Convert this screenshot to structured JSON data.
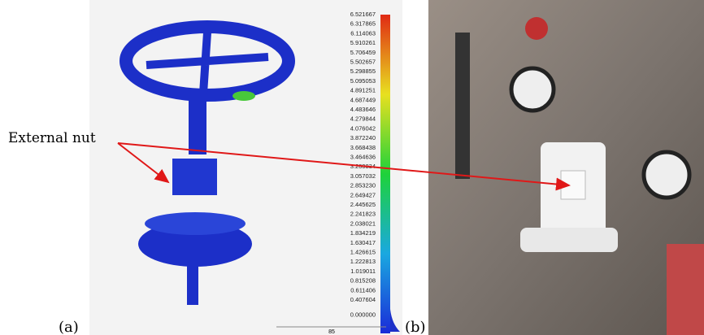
{
  "annotation": "External nut",
  "panel_a": {
    "label": "(a)",
    "colorbar_labels": [
      "6.521667",
      "6.317865",
      "6.114063",
      "5.910261",
      "5.706459",
      "5.502657",
      "5.298855",
      "5.095053",
      "4.891251",
      "4.687449",
      "4.483646",
      "4.279844",
      "4.076042",
      "3.872240",
      "3.668438",
      "3.464636",
      "3.260834",
      "3.057032",
      "2.853230",
      "2.649427",
      "2.445625",
      "2.241823",
      "2.038021",
      "1.834219",
      "1.630417",
      "1.426615",
      "1.222813",
      "1.019011",
      "0.815208",
      "0.611406",
      "0.407604",
      "0.000000"
    ],
    "scale_bar": "85"
  },
  "panel_b": {
    "label": "(b)"
  }
}
